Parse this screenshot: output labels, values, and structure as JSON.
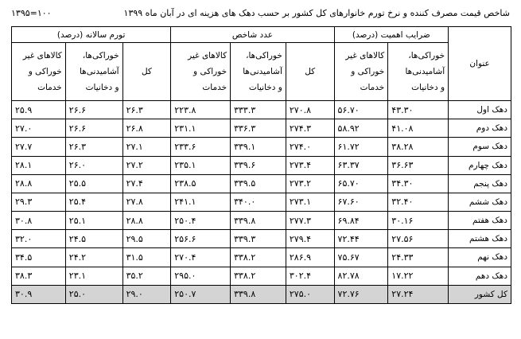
{
  "header": {
    "title": "شاخص قیمت مصرف کننده و نرخ تورم خانوارهای کل کشور بر حسب دهک های هزینه ای در آبان ماه ۱۳۹۹",
    "base_year": "۱۳۹۵=۱۰۰"
  },
  "table": {
    "title_header": "عنوان",
    "groups": [
      "ضرایب اهمیت (درصد)",
      "عدد شاخص",
      "تورم سالانه (درصد)"
    ],
    "subheaders": {
      "food": [
        "خوراکی‌ها،",
        "آشامیدنی‌ها",
        "و دخانیات"
      ],
      "nonfood": [
        "کالاهای غیر",
        "خوراکی و",
        "خدمات"
      ],
      "total": "کل"
    },
    "rows": [
      {
        "label": "دهک اول",
        "w_food": "۴۳.۳۰",
        "w_nonfood": "۵۶.۷۰",
        "i_total": "۲۷۰.۸",
        "i_food": "۳۳۳.۳",
        "i_nonfood": "۲۲۳.۸",
        "f_total": "۲۶.۳",
        "f_food": "۲۶.۶",
        "f_nonfood": "۲۵.۹"
      },
      {
        "label": "دهک دوم",
        "w_food": "۴۱.۰۸",
        "w_nonfood": "۵۸.۹۲",
        "i_total": "۲۷۴.۳",
        "i_food": "۳۳۶.۳",
        "i_nonfood": "۲۳۱.۱",
        "f_total": "۲۶.۸",
        "f_food": "۲۶.۶",
        "f_nonfood": "۲۷.۰"
      },
      {
        "label": "دهک سوم",
        "w_food": "۳۸.۲۸",
        "w_nonfood": "۶۱.۷۲",
        "i_total": "۲۷۴.۰",
        "i_food": "۳۳۹.۱",
        "i_nonfood": "۲۳۳.۶",
        "f_total": "۲۷.۱",
        "f_food": "۲۶.۳",
        "f_nonfood": "۲۷.۷"
      },
      {
        "label": "دهک چهارم",
        "w_food": "۳۶.۶۳",
        "w_nonfood": "۶۳.۳۷",
        "i_total": "۲۷۳.۴",
        "i_food": "۳۳۹.۶",
        "i_nonfood": "۲۳۵.۱",
        "f_total": "۲۷.۲",
        "f_food": "۲۶.۰",
        "f_nonfood": "۲۸.۱"
      },
      {
        "label": "دهک پنجم",
        "w_food": "۳۴.۳۰",
        "w_nonfood": "۶۵.۷۰",
        "i_total": "۲۷۳.۲",
        "i_food": "۳۳۹.۵",
        "i_nonfood": "۲۳۸.۵",
        "f_total": "۲۷.۴",
        "f_food": "۲۵.۵",
        "f_nonfood": "۲۸.۸"
      },
      {
        "label": "دهک ششم",
        "w_food": "۳۲.۴۰",
        "w_nonfood": "۶۷.۶۰",
        "i_total": "۲۷۳.۱",
        "i_food": "۳۴۰.۰",
        "i_nonfood": "۲۴۱.۱",
        "f_total": "۲۷.۸",
        "f_food": "۲۵.۴",
        "f_nonfood": "۲۹.۳"
      },
      {
        "label": "دهک هفتم",
        "w_food": "۳۰.۱۶",
        "w_nonfood": "۶۹.۸۴",
        "i_total": "۲۷۷.۳",
        "i_food": "۳۳۹.۸",
        "i_nonfood": "۲۵۰.۴",
        "f_total": "۲۸.۸",
        "f_food": "۲۵.۱",
        "f_nonfood": "۳۰.۸"
      },
      {
        "label": "دهک هشتم",
        "w_food": "۲۷.۵۶",
        "w_nonfood": "۷۲.۴۴",
        "i_total": "۲۷۹.۴",
        "i_food": "۳۳۹.۳",
        "i_nonfood": "۲۵۶.۶",
        "f_total": "۲۹.۵",
        "f_food": "۲۴.۵",
        "f_nonfood": "۳۲.۰"
      },
      {
        "label": "دهک نهم",
        "w_food": "۲۴.۳۳",
        "w_nonfood": "۷۵.۶۷",
        "i_total": "۲۸۶.۹",
        "i_food": "۳۳۸.۲",
        "i_nonfood": "۲۷۰.۴",
        "f_total": "۳۱.۵",
        "f_food": "۲۴.۲",
        "f_nonfood": "۳۴.۵"
      },
      {
        "label": "دهک دهم",
        "w_food": "۱۷.۲۲",
        "w_nonfood": "۸۲.۷۸",
        "i_total": "۳۰۲.۴",
        "i_food": "۳۳۸.۲",
        "i_nonfood": "۲۹۵.۰",
        "f_total": "۳۵.۲",
        "f_food": "۲۳.۱",
        "f_nonfood": "۳۸.۳"
      },
      {
        "label": "کل کشور",
        "w_food": "۲۷.۲۴",
        "w_nonfood": "۷۲.۷۶",
        "i_total": "۲۷۵.۰",
        "i_food": "۳۳۹.۸",
        "i_nonfood": "۲۵۰.۷",
        "f_total": "۲۹.۰",
        "f_food": "۲۵.۰",
        "f_nonfood": "۳۰.۹"
      }
    ]
  }
}
